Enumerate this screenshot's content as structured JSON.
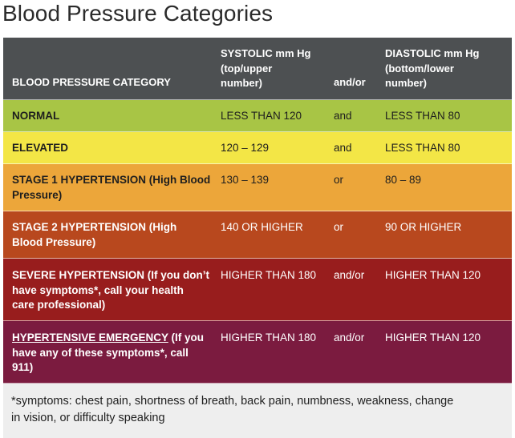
{
  "title": "Blood Pressure Categories",
  "header": {
    "category": "BLOOD PRESSURE CATEGORY",
    "systolic_line1": "SYSTOLIC mm Hg",
    "systolic_line2": "(top/upper",
    "systolic_line3": "number)",
    "andor": "and/or",
    "diastolic_line1": "DIASTOLIC mm Hg",
    "diastolic_line2": "(bottom/lower",
    "diastolic_line3": "number)"
  },
  "rows": [
    {
      "category": "NORMAL",
      "systolic": "LESS THAN 120",
      "andor": "and",
      "diastolic": "LESS THAN 80",
      "color": "#a8c545"
    },
    {
      "category": "ELEVATED",
      "systolic": "120 – 129",
      "andor": "and",
      "diastolic": "LESS THAN 80",
      "color": "#f3e646"
    },
    {
      "category_line1": "STAGE 1 HYPERTENSION (High Blood",
      "category_line2": "Pressure)",
      "systolic": "130 – 139",
      "andor": "or",
      "diastolic": "80 – 89",
      "color": "#eca63a"
    },
    {
      "category_line1": "STAGE 2 HYPERTENSION (High",
      "category_line2": "Blood Pressure)",
      "systolic": "140 OR HIGHER",
      "andor": "or",
      "diastolic": "90 OR HIGHER",
      "color": "#b8481e"
    },
    {
      "category_line1": "SEVERE HYPERTENSION (If you don’t",
      "category_line2": "have symptoms*, call your health",
      "category_line3": "care professional)",
      "systolic": "HIGHER THAN 180",
      "andor": "and/or",
      "diastolic": "HIGHER THAN 120",
      "color": "#981d1d"
    },
    {
      "category_link": "HYPERTENSIVE EMERGENCY",
      "category_line1_rest": " (If you",
      "category_line2": "have any of these symptoms*, call",
      "category_line3": "911)",
      "systolic": "HIGHER THAN 180",
      "andor": "and/or",
      "diastolic": "HIGHER THAN 120",
      "color": "#7b1b3f"
    }
  ],
  "footnote_line1": "*symptoms: chest pain, shortness of breath, back pain, numbness, weakness, change",
  "footnote_line2": "in vision, or difficulty speaking"
}
